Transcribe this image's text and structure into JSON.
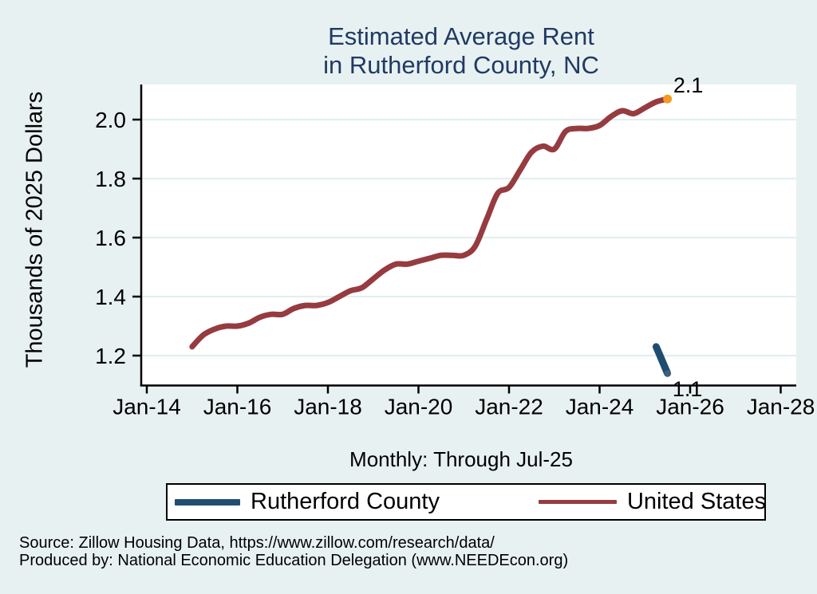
{
  "page": {
    "background_color": "#e8f1f1",
    "title_color": "#203a64",
    "plot_background": "#ffffff",
    "gridline_color": "#dce9ec"
  },
  "chart": {
    "title_line1": "Estimated Average Rent",
    "title_line2": "in Rutherford County, NC",
    "y_axis_title": "Thousands of 2025 Dollars",
    "note": "Monthly: Through Jul-25"
  },
  "chart_data": {
    "type": "line",
    "title": "Estimated Average Rent in Rutherford County, NC",
    "xlabel": "",
    "ylabel": "Thousands of 2025 Dollars",
    "frequency_note": "Monthly: Through Jul-25",
    "grid": true,
    "legend_position": "bottom",
    "x_tick_labels": [
      "Jan-14",
      "Jan-16",
      "Jan-18",
      "Jan-20",
      "Jan-22",
      "Jan-24",
      "Jan-26",
      "Jan-28"
    ],
    "x_tick_years": [
      2014,
      2016,
      2018,
      2020,
      2022,
      2024,
      2026,
      2028
    ],
    "y_tick_labels": [
      "1.2",
      "1.4",
      "1.6",
      "1.8",
      "2.0"
    ],
    "y_tick_values": [
      1.2,
      1.4,
      1.6,
      1.8,
      2.0
    ],
    "ylim": [
      1.1,
      2.13
    ],
    "xlim_years": [
      2013.88,
      2028.35
    ],
    "series": [
      {
        "name": "Rutherford County",
        "color": "#1f4d72",
        "end_label": "1.1",
        "end_marker_color": "#3c5f7d",
        "points": [
          [
            "Apr-25",
            1.23
          ],
          [
            "May-25",
            1.2
          ],
          [
            "Jun-25",
            1.17
          ],
          [
            "Jul-25",
            1.14
          ]
        ]
      },
      {
        "name": "United States",
        "color": "#963b40",
        "end_label": "2.1",
        "end_marker_color": "#f6991e",
        "points": [
          [
            "Jan-15",
            1.23
          ],
          [
            "Apr-15",
            1.27
          ],
          [
            "Jul-15",
            1.29
          ],
          [
            "Oct-15",
            1.3
          ],
          [
            "Jan-16",
            1.3
          ],
          [
            "Apr-16",
            1.31
          ],
          [
            "Jul-16",
            1.33
          ],
          [
            "Oct-16",
            1.34
          ],
          [
            "Jan-17",
            1.34
          ],
          [
            "Apr-17",
            1.36
          ],
          [
            "Jul-17",
            1.37
          ],
          [
            "Oct-17",
            1.37
          ],
          [
            "Jan-18",
            1.38
          ],
          [
            "Apr-18",
            1.4
          ],
          [
            "Jul-18",
            1.42
          ],
          [
            "Oct-18",
            1.43
          ],
          [
            "Jan-19",
            1.46
          ],
          [
            "Apr-19",
            1.49
          ],
          [
            "Jul-19",
            1.51
          ],
          [
            "Oct-19",
            1.51
          ],
          [
            "Jan-20",
            1.52
          ],
          [
            "Apr-20",
            1.53
          ],
          [
            "Jul-20",
            1.54
          ],
          [
            "Oct-20",
            1.54
          ],
          [
            "Jan-21",
            1.54
          ],
          [
            "Apr-21",
            1.57
          ],
          [
            "Jul-21",
            1.66
          ],
          [
            "Oct-21",
            1.75
          ],
          [
            "Jan-22",
            1.77
          ],
          [
            "Apr-22",
            1.83
          ],
          [
            "Jul-22",
            1.89
          ],
          [
            "Oct-22",
            1.91
          ],
          [
            "Jan-23",
            1.9
          ],
          [
            "Apr-23",
            1.96
          ],
          [
            "Jul-23",
            1.97
          ],
          [
            "Oct-23",
            1.97
          ],
          [
            "Jan-24",
            1.98
          ],
          [
            "Apr-24",
            2.01
          ],
          [
            "Jul-24",
            2.03
          ],
          [
            "Oct-24",
            2.02
          ],
          [
            "Jan-25",
            2.04
          ],
          [
            "Apr-25",
            2.06
          ],
          [
            "Jul-25",
            2.07
          ]
        ]
      }
    ]
  },
  "footer": {
    "source_line": "Source: Zillow Housing Data, https://www.zillow.com/research/data/",
    "produced_line": "Produced by: National Economic Education Delegation (www.NEEDEcon.org)"
  }
}
